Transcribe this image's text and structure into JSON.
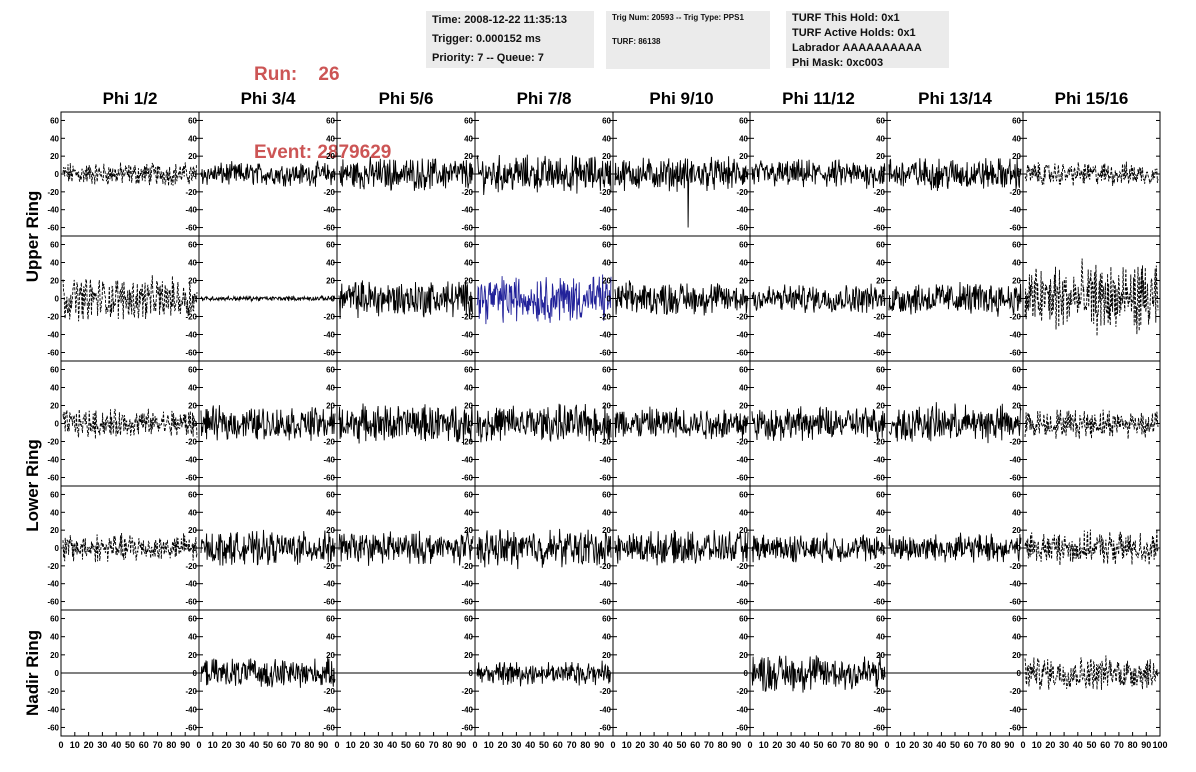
{
  "run_label": "Run:",
  "run_value": "26",
  "event_label": "Event:",
  "event_value": "2879629",
  "time_info": {
    "time": "Time: 2008-12-22 11:35:13",
    "trigger": "Trigger: 0.000152 ms",
    "priority": "Priority: 7 -- Queue: 7"
  },
  "trig_info": {
    "trig": "Trig Num: 20593 -- Trig Type: PPS1",
    "turf": "TURF: 86138"
  },
  "turf_info": {
    "hold": "TURF This Hold: 0x1",
    "active": "TURF Active Holds: 0x1",
    "labrador": "Labrador AAAAAAAAAA",
    "phimask": "Phi Mask: 0xc003"
  },
  "columns": [
    "Phi 1/2",
    "Phi 3/4",
    "Phi 5/6",
    "Phi 7/8",
    "Phi 9/10",
    "Phi 11/12",
    "Phi 13/14",
    "Phi 15/16"
  ],
  "ring_labels": [
    "Upper Ring",
    "Lower Ring",
    "Nadir Ring"
  ],
  "colors": {
    "run_text": "#cc5555",
    "info_box": "#ebebeb",
    "trace": "#000000",
    "highlight_trace": "#22229a"
  },
  "chart_data": {
    "type": "line",
    "description_rows": 5,
    "description_cols": 8,
    "ylim": [
      -65,
      65
    ],
    "xlim": [
      0,
      100
    ],
    "y_ticks": [
      -60,
      -40,
      -20,
      0,
      20,
      40,
      60
    ],
    "x_ticks": [
      0,
      10,
      20,
      30,
      40,
      50,
      60,
      70,
      80,
      90,
      100
    ],
    "x_tick_labels_bottom": "0 10 20 30 40 50 60 70 80 90 100",
    "panels": [
      [
        {
          "amp": 10,
          "style": "dashed"
        },
        {
          "amp": 10,
          "style": "solid"
        },
        {
          "amp": 14,
          "style": "solid"
        },
        {
          "amp": 16,
          "style": "solid"
        },
        {
          "amp": 14,
          "style": "solid",
          "spike": -60
        },
        {
          "amp": 12,
          "style": "solid"
        },
        {
          "amp": 14,
          "style": "solid"
        },
        {
          "amp": 10,
          "style": "dashed"
        }
      ],
      [
        {
          "amp": 18,
          "style": "dashed"
        },
        {
          "amp": 2,
          "style": "solid"
        },
        {
          "amp": 16,
          "style": "solid"
        },
        {
          "amp": 20,
          "style": "solid",
          "highlight": true
        },
        {
          "amp": 14,
          "style": "solid"
        },
        {
          "amp": 12,
          "style": "solid"
        },
        {
          "amp": 14,
          "style": "solid"
        },
        {
          "amp": 30,
          "style": "dashed"
        }
      ],
      [
        {
          "amp": 12,
          "style": "dashed"
        },
        {
          "amp": 14,
          "style": "solid"
        },
        {
          "amp": 16,
          "style": "solid"
        },
        {
          "amp": 16,
          "style": "solid"
        },
        {
          "amp": 14,
          "style": "solid"
        },
        {
          "amp": 14,
          "style": "solid"
        },
        {
          "amp": 16,
          "style": "solid"
        },
        {
          "amp": 12,
          "style": "dashed"
        }
      ],
      [
        {
          "amp": 12,
          "style": "dashed"
        },
        {
          "amp": 14,
          "style": "solid"
        },
        {
          "amp": 14,
          "style": "solid"
        },
        {
          "amp": 16,
          "style": "solid"
        },
        {
          "amp": 14,
          "style": "solid"
        },
        {
          "amp": 12,
          "style": "solid"
        },
        {
          "amp": 12,
          "style": "solid"
        },
        {
          "amp": 14,
          "style": "dashed"
        }
      ],
      [
        {
          "amp": 0,
          "style": "flat"
        },
        {
          "amp": 12,
          "style": "solid"
        },
        {
          "amp": 0,
          "style": "flat"
        },
        {
          "amp": 10,
          "style": "solid"
        },
        {
          "amp": 0,
          "style": "flat"
        },
        {
          "amp": 16,
          "style": "solid"
        },
        {
          "amp": 0,
          "style": "flat"
        },
        {
          "amp": 14,
          "style": "dashed"
        }
      ]
    ]
  }
}
